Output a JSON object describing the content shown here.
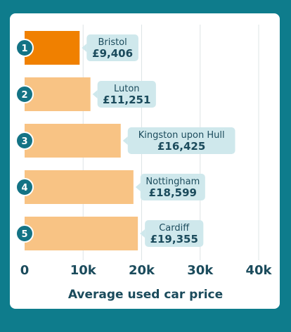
{
  "colors": {
    "frame": "#0e7c8c",
    "card": "#ffffff",
    "highlight_bar": "#f08000",
    "bar": "#f8c384",
    "callout": "#cfe8ec",
    "badge": "#137385",
    "text": "#1b4b5c",
    "grid": "#dde4e6"
  },
  "chart_data": {
    "type": "bar",
    "orientation": "horizontal",
    "categories": [
      "Bristol",
      "Luton",
      "Kingston upon Hull",
      "Nottingham",
      "Cardiff"
    ],
    "ranks": [
      "1",
      "2",
      "3",
      "4",
      "5"
    ],
    "values": [
      9406,
      11251,
      16425,
      18599,
      19355
    ],
    "value_labels": [
      "£9,406",
      "£11,251",
      "£16,425",
      "£18,599",
      "£19,355"
    ],
    "highlight_index": 0,
    "xlim": [
      0,
      40000
    ],
    "x_ticks": [
      0,
      10000,
      20000,
      30000,
      40000
    ],
    "x_tick_labels": [
      "0",
      "10k",
      "20k",
      "30k",
      "40k"
    ],
    "xlabel": "Average used car price",
    "grid": true
  }
}
